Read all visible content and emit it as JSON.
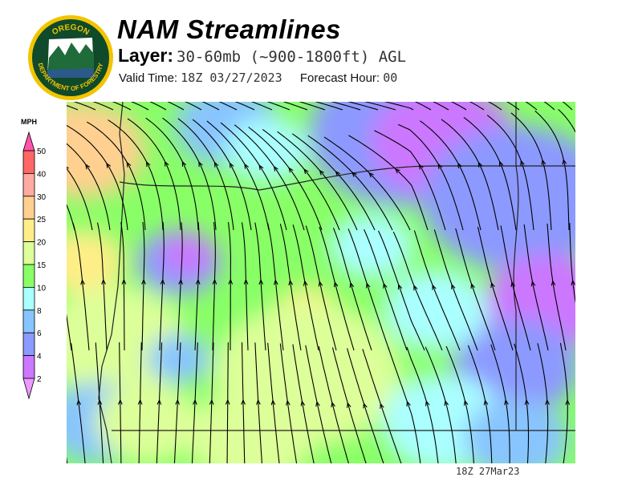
{
  "header": {
    "logo_text": "OREGON DEPARTMENT OF FORESTRY",
    "title": "NAM Streamlines",
    "layer_label": "Layer:",
    "layer_value": "30-60mb (~900-1800ft) AGL",
    "valid_label": "Valid Time:",
    "valid_value": "18Z 03/27/2023",
    "forecast_label": "Forecast Hour:",
    "forecast_value": "00"
  },
  "legend": {
    "unit": "MPH",
    "ticks": [
      "50",
      "40",
      "30",
      "25",
      "20",
      "15",
      "10",
      "8",
      "6",
      "4",
      "2"
    ],
    "top_color": "#ff55aa",
    "bottom_color": "#ee99ff",
    "bins": [
      "#ff6666",
      "#ffaaa0",
      "#ffd090",
      "#ffee88",
      "#ddff99",
      "#88ff66",
      "#aaffff",
      "#88c4ff",
      "#8c99ff",
      "#cc77ff"
    ]
  },
  "footer": {
    "timestamp": "18Z 27Mar23"
  }
}
